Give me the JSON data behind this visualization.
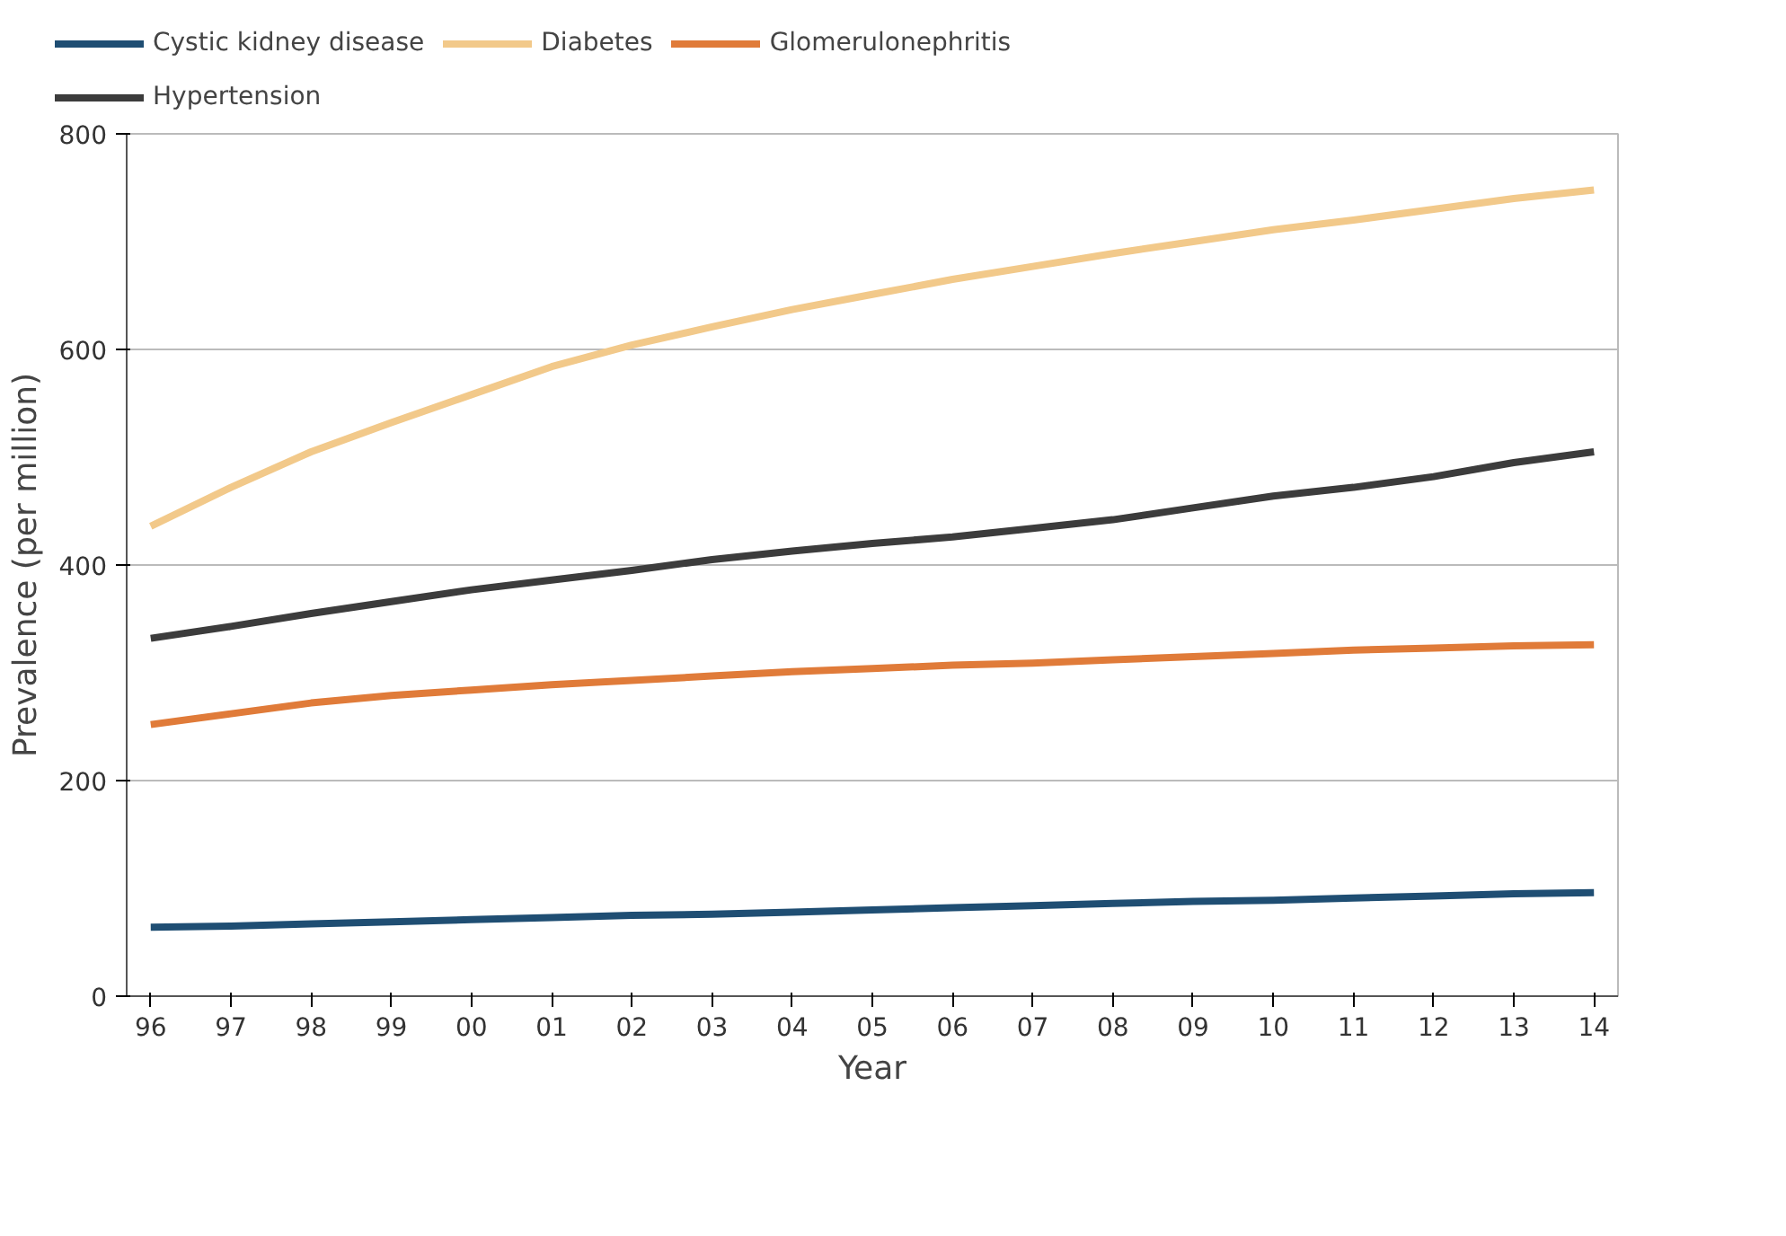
{
  "chart_data": {
    "type": "line",
    "xlabel": "Year",
    "ylabel": "Prevalence (per million)",
    "categories": [
      "96",
      "97",
      "98",
      "99",
      "00",
      "01",
      "02",
      "03",
      "04",
      "05",
      "06",
      "07",
      "08",
      "09",
      "10",
      "11",
      "12",
      "13",
      "14"
    ],
    "series": [
      {
        "name": "Cystic kidney disease",
        "color": "#1f4e73",
        "values": [
          64,
          65,
          67,
          69,
          71,
          73,
          75,
          76,
          78,
          80,
          82,
          84,
          86,
          88,
          89,
          91,
          93,
          95,
          96
        ]
      },
      {
        "name": "Diabetes",
        "color": "#f2c98a",
        "values": [
          436,
          472,
          505,
          532,
          558,
          584,
          604,
          621,
          637,
          651,
          665,
          677,
          689,
          700,
          711,
          720,
          730,
          740,
          748
        ]
      },
      {
        "name": "Glomerulonephritis",
        "color": "#e07b39",
        "values": [
          252,
          262,
          272,
          279,
          284,
          289,
          293,
          297,
          301,
          304,
          307,
          309,
          312,
          315,
          318,
          321,
          323,
          325,
          326
        ]
      },
      {
        "name": "Hypertension",
        "color": "#3c3c3c",
        "values": [
          332,
          343,
          355,
          366,
          377,
          386,
          395,
          405,
          413,
          420,
          426,
          434,
          442,
          453,
          464,
          472,
          482,
          495,
          505
        ]
      }
    ],
    "ylim": [
      0,
      800
    ],
    "yticks": [
      0,
      200,
      400,
      600,
      800
    ],
    "grid": "y",
    "legend": "top",
    "marker": "none",
    "line_style": "solid"
  }
}
